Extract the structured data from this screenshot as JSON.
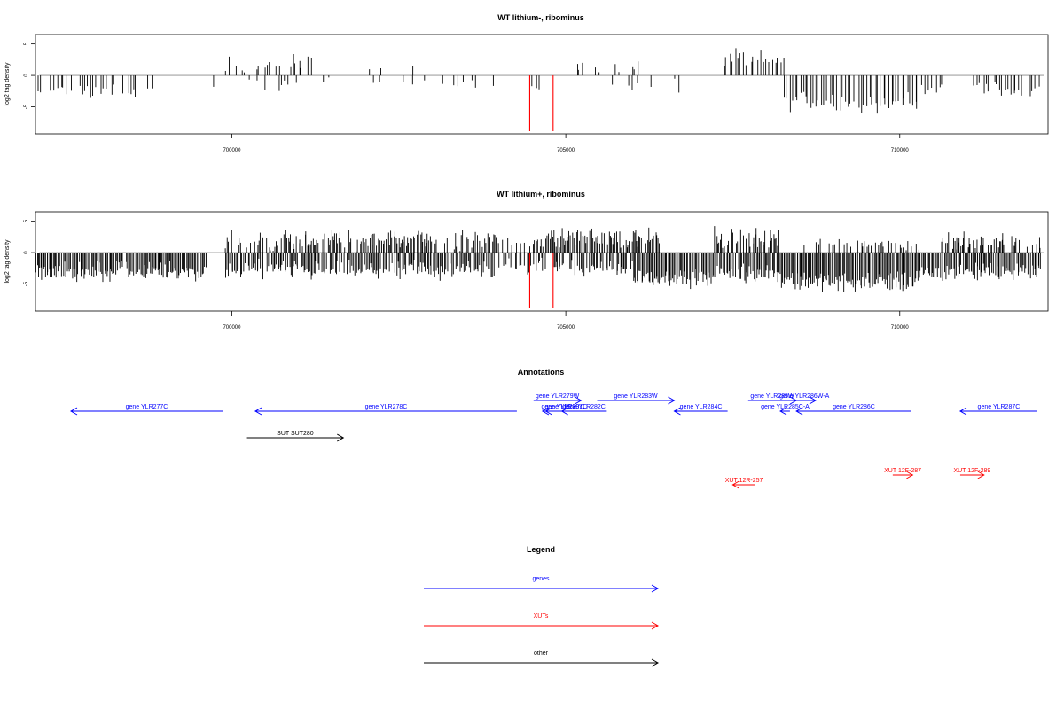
{
  "chart_data": [
    {
      "type": "bar",
      "title": "WT lithium-, ribominus",
      "ylabel": "log2 tag density",
      "xlabel": "",
      "xlim": [
        697060,
        712220
      ],
      "ylim": [
        -9.3,
        6.5
      ],
      "x_ticks": [
        "700000",
        "705000",
        "710000"
      ],
      "y_ticks": [
        "5",
        "0",
        "-5"
      ],
      "grid": false,
      "red_marks": [
        704460,
        704810
      ],
      "density": {
        "step": 40,
        "regions": [
          {
            "start": 697060,
            "end": 698800,
            "mean": -2.4,
            "spread": 1.2,
            "fill": 0.7
          },
          {
            "start": 699500,
            "end": 699880,
            "mean": -1.6,
            "spread": 0.6,
            "fill": 0.3
          },
          {
            "start": 699900,
            "end": 701200,
            "mean": 1.6,
            "spread": 1.3,
            "fill": 0.55
          },
          {
            "start": 700100,
            "end": 701000,
            "mean": -1.5,
            "spread": 0.8,
            "fill": 0.35
          },
          {
            "start": 701300,
            "end": 704000,
            "mean": -1.2,
            "spread": 0.7,
            "fill": 0.18
          },
          {
            "start": 702000,
            "end": 703000,
            "mean": 1.0,
            "spread": 0.6,
            "fill": 0.07
          },
          {
            "start": 704000,
            "end": 704600,
            "mean": -2.2,
            "spread": 1.0,
            "fill": 0.25
          },
          {
            "start": 705100,
            "end": 706100,
            "mean": 1.6,
            "spread": 1.3,
            "fill": 0.45
          },
          {
            "start": 705600,
            "end": 706700,
            "mean": -1.8,
            "spread": 0.9,
            "fill": 0.2
          },
          {
            "start": 706700,
            "end": 707200,
            "mean": -1.0,
            "spread": 0.5,
            "fill": 0.1
          },
          {
            "start": 707350,
            "end": 708250,
            "mean": 2.5,
            "spread": 1.2,
            "fill": 0.9
          },
          {
            "start": 708250,
            "end": 710250,
            "mean": -4.2,
            "spread": 1.3,
            "fill": 0.97
          },
          {
            "start": 710250,
            "end": 710600,
            "mean": -2.0,
            "spread": 0.7,
            "fill": 0.4
          },
          {
            "start": 710600,
            "end": 711200,
            "mean": -1.4,
            "spread": 0.6,
            "fill": 0.15
          },
          {
            "start": 711200,
            "end": 712100,
            "mean": -2.6,
            "spread": 1.0,
            "fill": 0.75
          },
          {
            "start": 711400,
            "end": 712100,
            "mean": 1.0,
            "spread": 0.5,
            "fill": 0.1
          }
        ]
      }
    },
    {
      "type": "bar",
      "title": "WT lithium+, ribominus",
      "ylabel": "log2 tag density",
      "xlabel": "",
      "xlim": [
        697060,
        712220
      ],
      "ylim": [
        -9.3,
        6.5
      ],
      "x_ticks": [
        "700000",
        "705000",
        "710000"
      ],
      "y_ticks": [
        "5",
        "0",
        "-5"
      ],
      "grid": false,
      "red_marks": [
        704460,
        704810
      ],
      "density": {
        "step": 18,
        "regions": [
          {
            "start": 697060,
            "end": 699600,
            "mean": -3.0,
            "spread": 1.3,
            "fill": 0.95
          },
          {
            "start": 699900,
            "end": 704000,
            "mean": 2.0,
            "spread": 1.2,
            "fill": 0.65
          },
          {
            "start": 699900,
            "end": 704000,
            "mean": -2.8,
            "spread": 1.2,
            "fill": 0.85
          },
          {
            "start": 704000,
            "end": 704700,
            "mean": -2.0,
            "spread": 1.0,
            "fill": 0.35
          },
          {
            "start": 704000,
            "end": 704700,
            "mean": 1.5,
            "spread": 0.7,
            "fill": 0.25
          },
          {
            "start": 704700,
            "end": 706400,
            "mean": 2.3,
            "spread": 1.2,
            "fill": 0.85
          },
          {
            "start": 704800,
            "end": 706000,
            "mean": -2.5,
            "spread": 1.1,
            "fill": 0.7
          },
          {
            "start": 706000,
            "end": 707200,
            "mean": -4.0,
            "spread": 1.2,
            "fill": 0.95
          },
          {
            "start": 707200,
            "end": 708200,
            "mean": 2.4,
            "spread": 1.3,
            "fill": 0.8
          },
          {
            "start": 707200,
            "end": 708200,
            "mean": -3.2,
            "spread": 1.1,
            "fill": 0.85
          },
          {
            "start": 708200,
            "end": 710300,
            "mean": -4.6,
            "spread": 1.3,
            "fill": 1.0
          },
          {
            "start": 708500,
            "end": 710300,
            "mean": 1.3,
            "spread": 0.7,
            "fill": 0.35
          },
          {
            "start": 710300,
            "end": 712100,
            "mean": -3.1,
            "spread": 1.1,
            "fill": 0.9
          },
          {
            "start": 710600,
            "end": 712100,
            "mean": 1.8,
            "spread": 1.0,
            "fill": 0.55
          }
        ]
      }
    }
  ],
  "annotations": {
    "title": "Annotations",
    "genes": [
      {
        "label": "gene YLR277C",
        "start": 697060,
        "end": 699420,
        "strand": "-",
        "row": 1
      },
      {
        "label": "gene YLR278C",
        "start": 699930,
        "end": 704000,
        "strand": "-",
        "row": 1
      },
      {
        "label": "gene YLR279W",
        "start": 704260,
        "end": 705000,
        "strand": "+",
        "row": 0
      },
      {
        "label": "gene YLR280",
        "start": 704400,
        "end": 704950,
        "strand": "-",
        "row": 1
      },
      {
        "label": "gene YLR281C",
        "start": 704450,
        "end": 705080,
        "strand": "-",
        "row": 1
      },
      {
        "label": "gene YLR282C",
        "start": 704700,
        "end": 705400,
        "strand": "-",
        "row": 1
      },
      {
        "label": "gene YLR283W",
        "start": 705250,
        "end": 706450,
        "strand": "+",
        "row": 0
      },
      {
        "label": "gene YLR284C",
        "start": 706450,
        "end": 707280,
        "strand": "-",
        "row": 1
      },
      {
        "label": "gene YLR285W",
        "start": 707600,
        "end": 708350,
        "strand": "+",
        "row": 0
      },
      {
        "label": "gene YLR285C-A",
        "start": 708100,
        "end": 708250,
        "strand": "-",
        "row": 1
      },
      {
        "label": "gene YLR286W-A",
        "start": 708300,
        "end": 708650,
        "strand": "+",
        "row": 0
      },
      {
        "label": "gene YLR286C",
        "start": 708350,
        "end": 710140,
        "strand": "-",
        "row": 1
      },
      {
        "label": "gene YLR287C",
        "start": 710900,
        "end": 712100,
        "strand": "-",
        "row": 1
      }
    ],
    "xuts": [
      {
        "label": "XUT 12R-257",
        "start": 707360,
        "end": 707710,
        "strand": "-",
        "row": 2
      },
      {
        "label": "XUT 12F-287",
        "start": 709850,
        "end": 710160,
        "strand": "+",
        "row": 1
      },
      {
        "label": "XUT 12F-289",
        "start": 710900,
        "end": 711270,
        "strand": "+",
        "row": 1
      }
    ],
    "other": [
      {
        "label": "SUT SUT280",
        "start": 699800,
        "end": 701300,
        "strand": "+",
        "row": 0
      }
    ]
  },
  "legend": {
    "title": "Legend",
    "items": [
      {
        "label": "genes",
        "color": "#0000ff"
      },
      {
        "label": "XUTs",
        "color": "#ff0000"
      },
      {
        "label": "other",
        "color": "#000000"
      }
    ]
  },
  "colors": {
    "genes": "#0000ff",
    "xuts": "#ff0000",
    "other": "#000000",
    "signal": "#000000",
    "marks": "#ff0000",
    "baseline": "#888888"
  }
}
